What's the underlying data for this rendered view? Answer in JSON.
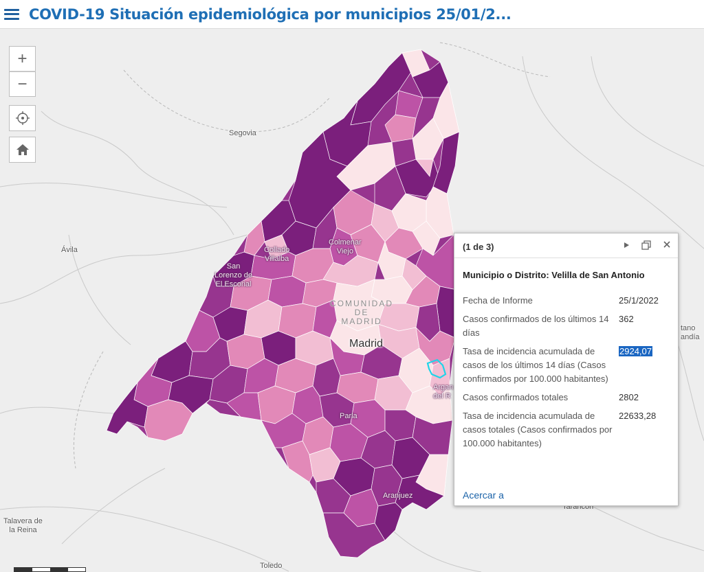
{
  "header": {
    "title": "COVID-19 Situación epidemiológica por municipios 25/01/2..."
  },
  "map": {
    "places": {
      "segovia": "Segovia",
      "avila": "Ávila",
      "collado": "Collado\nVillalba",
      "colmenar": "Colmenar\nViejo",
      "escorial": "San\nLorenzo de\nEl Escorial",
      "comunidad": "COMUNIDAD\nDE\nMADRID",
      "madrid": "Madrid",
      "arganda": "Argan\ndel R",
      "parla": "Parla",
      "aranjuez": "Aranjuez",
      "talavera": "Talavera de\nla Reina",
      "toledo": "Toledo",
      "tarancon": "Tarancón",
      "guadalajara": "tano\nandía"
    },
    "colors": {
      "darkest": "#7b1f7c",
      "dark": "#97358f",
      "mid": "#bd53a6",
      "light": "#e289b8",
      "lighter": "#f2bed3",
      "lightest": "#fbe5e8",
      "selected_outline": "#1fd4e8"
    }
  },
  "controls": {
    "zoom_in": "+",
    "zoom_out": "−"
  },
  "popup": {
    "count": "(1 de 3)",
    "title": "Municipio o Distrito: Velilla de San Antonio",
    "rows": [
      {
        "label": "Fecha de Informe",
        "value": "25/1/2022"
      },
      {
        "label": "Casos confirmados de los últimos 14 días",
        "value": "362"
      },
      {
        "label": "Tasa de incidencia acumulada de casos de los últimos 14 días (Casos confirmados por 100.000 habitantes)",
        "value": "2924,07"
      },
      {
        "label": "Casos confirmados totales",
        "value": "2802"
      },
      {
        "label": "Tasa de incidencia acumulada de casos totales (Casos confirmados por 100.000 habitantes)",
        "value": "22633,28"
      }
    ],
    "zoom_link": "Acercar a"
  }
}
